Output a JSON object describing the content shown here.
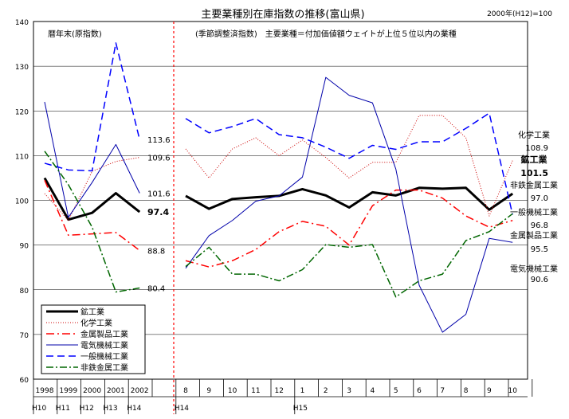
{
  "chart_data": {
    "type": "line",
    "title": "主要業種別在庫指数の推移(富山県)",
    "base_note": "2000年(H12)=100",
    "left_panel_note": "暦年末(原指数)",
    "right_panel_note": "(季節調整済指数)　主要業種＝付加価値額ウェイトが上位５位以内の業種",
    "ylim": [
      60,
      140
    ],
    "yticks": [
      "60",
      "70",
      "80",
      "90",
      "100",
      "110",
      "120",
      "130",
      "140"
    ],
    "grid": true,
    "legend_position": "bottom-left",
    "left_categories": [
      "1998",
      "1999",
      "2000",
      "2001",
      "2002"
    ],
    "right_categories": [
      "8",
      "9",
      "10",
      "11",
      "12",
      "1",
      "2",
      "3",
      "4",
      "5",
      "6",
      "7",
      "8",
      "9",
      "10"
    ],
    "era_labels": [
      {
        "text": "H10",
        "col": 0
      },
      {
        "text": "H11",
        "col": 1
      },
      {
        "text": "H12",
        "col": 2
      },
      {
        "text": "H13",
        "col": 3
      },
      {
        "text": "H14",
        "col": 4
      },
      {
        "text": "H14",
        "col": 6
      },
      {
        "text": "H15",
        "col": 11
      }
    ],
    "series": [
      {
        "name": "鉱工業",
        "color": "#000000",
        "width": 3,
        "dash": "",
        "left": [
          105,
          95.7,
          97.2,
          101.6,
          97.4
        ],
        "right": [
          101.0,
          98.1,
          100.3,
          100.7,
          101.0,
          102.5,
          101.1,
          98.4,
          101.8,
          101.1,
          102.8,
          102.6,
          102.8,
          97.9,
          101.5
        ],
        "left_label": "97.4",
        "left_label_bold": true,
        "right_name_bold": true,
        "right_value_label": "101.5",
        "right_value_bold": true
      },
      {
        "name": "化学工業",
        "color": "#cc0000",
        "width": 1,
        "dash": "1,2",
        "left": [
          101.5,
          95.5,
          106.5,
          108.7,
          109.6
        ],
        "right": [
          111.5,
          105.0,
          111.5,
          114.0,
          110.0,
          113.5,
          109.6,
          105.0,
          108.5,
          108.5,
          119.0,
          119.0,
          114.0,
          96.5,
          108.9
        ],
        "left_label": "109.6",
        "left_label_bold": false,
        "right_name_bold": false,
        "right_value_label": "108.9",
        "right_value_bold": false
      },
      {
        "name": "金属製品工業",
        "color": "#ff0000",
        "width": 1.5,
        "dash": "10,4,2,4",
        "left": [
          104.5,
          92.2,
          92.5,
          92.8,
          88.8
        ],
        "right": [
          86.5,
          85.1,
          86.5,
          89.0,
          93.0,
          95.3,
          94.2,
          90.0,
          98.8,
          102.3,
          102.3,
          100.5,
          96.5,
          94.0,
          95.5
        ],
        "left_label": "88.8",
        "left_label_bold": false,
        "right_name_bold": false,
        "right_value_label": "95.5",
        "right_value_bold": false
      },
      {
        "name": "電気機械工業",
        "color": "#0000aa",
        "width": 1,
        "dash": "",
        "left": [
          122.0,
          96.2,
          104.0,
          112.5,
          101.6
        ],
        "right": [
          84.8,
          92.1,
          95.5,
          99.8,
          101.0,
          105.2,
          127.5,
          123.5,
          121.8,
          107.0,
          81.0,
          70.5,
          74.5,
          91.5,
          90.6
        ],
        "left_label": "101.6",
        "left_label_bold": false,
        "right_name_bold": false,
        "right_value_label": "90.6",
        "right_value_bold": false
      },
      {
        "name": "一般機械工業",
        "color": "#0000ff",
        "width": 1.5,
        "dash": "9,5",
        "left": [
          108.3,
          106.8,
          106.6,
          135.2,
          113.6
        ],
        "right": [
          118.3,
          115.1,
          116.5,
          118.3,
          114.7,
          114.0,
          111.9,
          109.4,
          112.3,
          111.4,
          113.1,
          113.1,
          116.1,
          119.5,
          96.8
        ],
        "left_label": "113.6",
        "left_label_bold": false,
        "right_name_bold": false,
        "right_value_label": "96.8",
        "right_value_bold": false
      },
      {
        "name": "非鉄金属工業",
        "color": "#006600",
        "width": 1.5,
        "dash": "9,3,2,3",
        "left": [
          111.0,
          103.5,
          94.0,
          79.5,
          80.4
        ],
        "right": [
          85.2,
          89.5,
          83.5,
          83.5,
          82.0,
          84.5,
          90.1,
          89.5,
          90.1,
          78.4,
          82.0,
          83.5,
          91.0,
          93.0,
          97.0
        ],
        "left_label": "80.4",
        "left_label_bold": false,
        "right_name_bold": false,
        "right_value_label": "97.0",
        "right_value_bold": false
      }
    ]
  }
}
